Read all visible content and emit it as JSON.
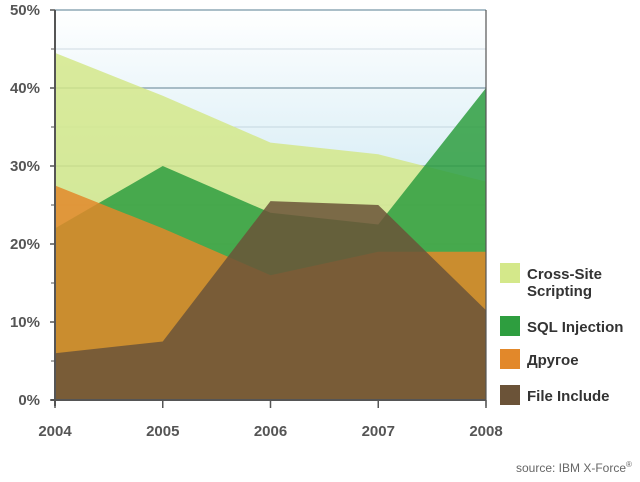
{
  "chart_data": {
    "type": "area",
    "x": [
      "2004",
      "2005",
      "2006",
      "2007",
      "2008"
    ],
    "ylim": [
      0,
      50
    ],
    "yticks": [
      "0%",
      "10%",
      "20%",
      "30%",
      "40%",
      "50%"
    ],
    "grid": true,
    "legend_position": "right",
    "series": [
      {
        "name": "Cross-Site Scripting",
        "values": [
          44.5,
          39,
          33,
          31.5,
          28
        ],
        "color": "#d4e88a"
      },
      {
        "name": "SQL Injection",
        "values": [
          22,
          30,
          24,
          22.5,
          40
        ],
        "color": "#2e9e3f"
      },
      {
        "name": "Другое",
        "values": [
          27.5,
          22,
          16,
          19,
          19
        ],
        "color": "#e2882a"
      },
      {
        "name": "File Include",
        "values": [
          6,
          7.5,
          25.5,
          25,
          11.5
        ],
        "color": "#6b5338"
      }
    ]
  },
  "source": "source: IBM X-Force",
  "source_mark": "®",
  "colors": {
    "sky_top": "#ffffff",
    "sky_bottom": "#bfe3f0",
    "grid": "#8fa8b5",
    "axis": "#555555"
  }
}
